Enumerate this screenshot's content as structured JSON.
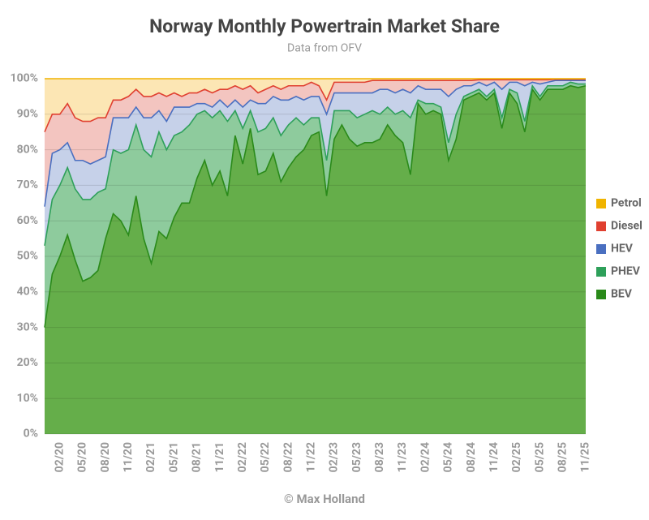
{
  "chart_data": {
    "type": "stacked-area",
    "title": "Norway Monthly Powertrain Market Share",
    "subtitle": "Data from OFV",
    "credit": "© Max Holland",
    "categories": [
      null,
      null,
      "02/20",
      null,
      null,
      "05/20",
      null,
      null,
      "08/20",
      null,
      null,
      "11/20",
      null,
      null,
      "02/21",
      null,
      null,
      "05/21",
      null,
      null,
      "08/21",
      null,
      null,
      "11/21",
      null,
      null,
      "02/22",
      null,
      null,
      "05/22",
      null,
      null,
      "08/22",
      null,
      null,
      "11/22",
      null,
      null,
      "02/23",
      null,
      null,
      "05/23",
      null,
      null,
      "08/23",
      null,
      null,
      "11/23",
      null,
      null,
      "02/24",
      null,
      null,
      "05/24",
      null,
      null,
      "08/24",
      null,
      null,
      "11/24",
      null,
      null,
      "02/25",
      null,
      null,
      "05/25",
      null,
      null,
      "08/25",
      null,
      null,
      "11/25"
    ],
    "ylim": [
      0,
      100
    ],
    "yticks": [
      {
        "value": 0,
        "label": "0%"
      },
      {
        "value": 10,
        "label": "10%"
      },
      {
        "value": 20,
        "label": "20%"
      },
      {
        "value": 30,
        "label": "30%"
      },
      {
        "value": 40,
        "label": "40%"
      },
      {
        "value": 50,
        "label": "50%"
      },
      {
        "value": 60,
        "label": "60%"
      },
      {
        "value": 70,
        "label": "70%"
      },
      {
        "value": 80,
        "label": "80%"
      },
      {
        "value": 90,
        "label": "90%"
      },
      {
        "value": 100,
        "label": "100%"
      }
    ],
    "grid": true,
    "legend": "right",
    "series": [
      {
        "name": "BEV",
        "color": "#2a8a1a",
        "fill": "#65ae4a",
        "values": [
          30,
          45,
          50,
          56,
          49,
          43,
          44,
          46,
          55,
          62,
          60,
          56,
          67,
          55,
          48,
          57,
          55,
          61,
          65,
          65,
          72,
          77,
          70,
          74,
          67,
          84,
          76,
          86,
          73,
          74,
          79,
          71,
          75,
          78,
          80,
          84,
          85,
          67,
          83,
          87,
          83,
          81,
          82,
          82,
          83,
          87,
          84,
          82,
          73,
          93,
          90,
          91,
          90,
          77,
          83,
          94,
          95,
          96,
          94,
          96,
          86,
          96,
          93,
          85,
          97,
          94,
          97,
          97,
          97,
          98,
          97.5,
          98
        ]
      },
      {
        "name": "PHEV",
        "color": "#2ea05a",
        "fill": "#8ecb9d",
        "values": [
          23,
          21,
          20,
          19,
          20,
          23,
          22,
          22,
          14,
          18,
          19,
          24,
          20,
          25,
          30,
          28,
          25,
          23,
          20,
          22,
          18,
          14,
          19,
          17,
          21,
          7,
          10,
          5,
          12,
          12,
          10,
          13,
          12,
          11,
          7,
          5,
          4,
          10,
          8,
          4,
          8,
          8,
          8,
          9,
          7,
          5,
          6,
          9,
          16,
          1,
          3,
          2,
          2,
          5,
          7,
          1,
          1,
          1,
          1,
          1,
          3,
          1,
          3,
          3,
          1,
          1,
          1,
          1,
          1,
          1,
          1,
          0.5
        ]
      },
      {
        "name": "HEV",
        "color": "#4a6fc0",
        "fill": "#c6d1e9",
        "values": [
          11,
          13,
          10,
          7,
          8,
          11,
          10,
          9,
          9,
          9,
          10,
          9,
          5,
          9,
          11,
          6,
          8,
          8,
          7,
          5,
          3,
          2,
          3,
          3,
          4,
          3,
          6,
          3,
          8,
          7,
          6,
          10,
          7,
          6,
          7,
          6,
          6,
          13,
          5,
          5,
          5,
          7,
          6,
          5,
          7,
          5,
          6,
          6,
          7,
          4,
          4,
          4,
          5,
          13,
          7,
          3,
          2,
          2,
          3,
          2,
          8,
          2,
          3,
          10,
          1,
          3.5,
          1,
          1.5,
          1.5,
          0.5,
          1,
          1
        ]
      },
      {
        "name": "Diesel",
        "color": "#e04030",
        "fill": "#f3c5c0",
        "values": [
          21,
          11,
          10,
          11,
          12,
          11,
          12,
          12,
          11,
          5,
          5,
          6,
          5,
          6,
          6,
          5,
          7,
          4,
          3,
          4,
          3,
          4,
          4,
          3,
          5,
          4,
          5,
          4,
          3,
          4,
          3,
          3,
          4,
          3,
          4,
          4,
          3,
          4,
          3,
          3,
          3,
          3,
          3,
          3.5,
          2.5,
          2.5,
          3.5,
          2.5,
          3.5,
          1.5,
          2.5,
          2.5,
          2.5,
          4.5,
          2.5,
          1.5,
          1.5,
          0.7,
          1.7,
          0.7,
          2.7,
          0.7,
          0.7,
          1.7,
          0.7,
          1.2,
          0.7,
          0.3,
          0.3,
          0.3,
          0.3,
          0.3
        ]
      },
      {
        "name": "Petrol",
        "color": "#f0b400",
        "fill": "#fce6b4",
        "values": [
          15,
          10,
          10,
          7,
          11,
          12,
          12,
          11,
          11,
          6,
          6,
          5,
          3,
          5,
          5,
          4,
          5,
          4,
          5,
          4,
          4,
          3,
          4,
          3,
          3,
          2,
          3,
          2,
          4,
          3,
          2,
          3,
          2,
          2,
          2,
          1,
          2,
          6,
          1,
          1,
          1,
          1,
          1,
          0.5,
          0.5,
          0.5,
          0.5,
          0.5,
          0.5,
          0.5,
          0.5,
          0.5,
          0.5,
          0.5,
          0.5,
          0.5,
          0.5,
          0.3,
          0.3,
          0.3,
          0.3,
          0.3,
          0.3,
          0.3,
          0.3,
          0.3,
          0.3,
          0.2,
          0.2,
          0.2,
          0.2,
          0.2
        ]
      }
    ]
  }
}
